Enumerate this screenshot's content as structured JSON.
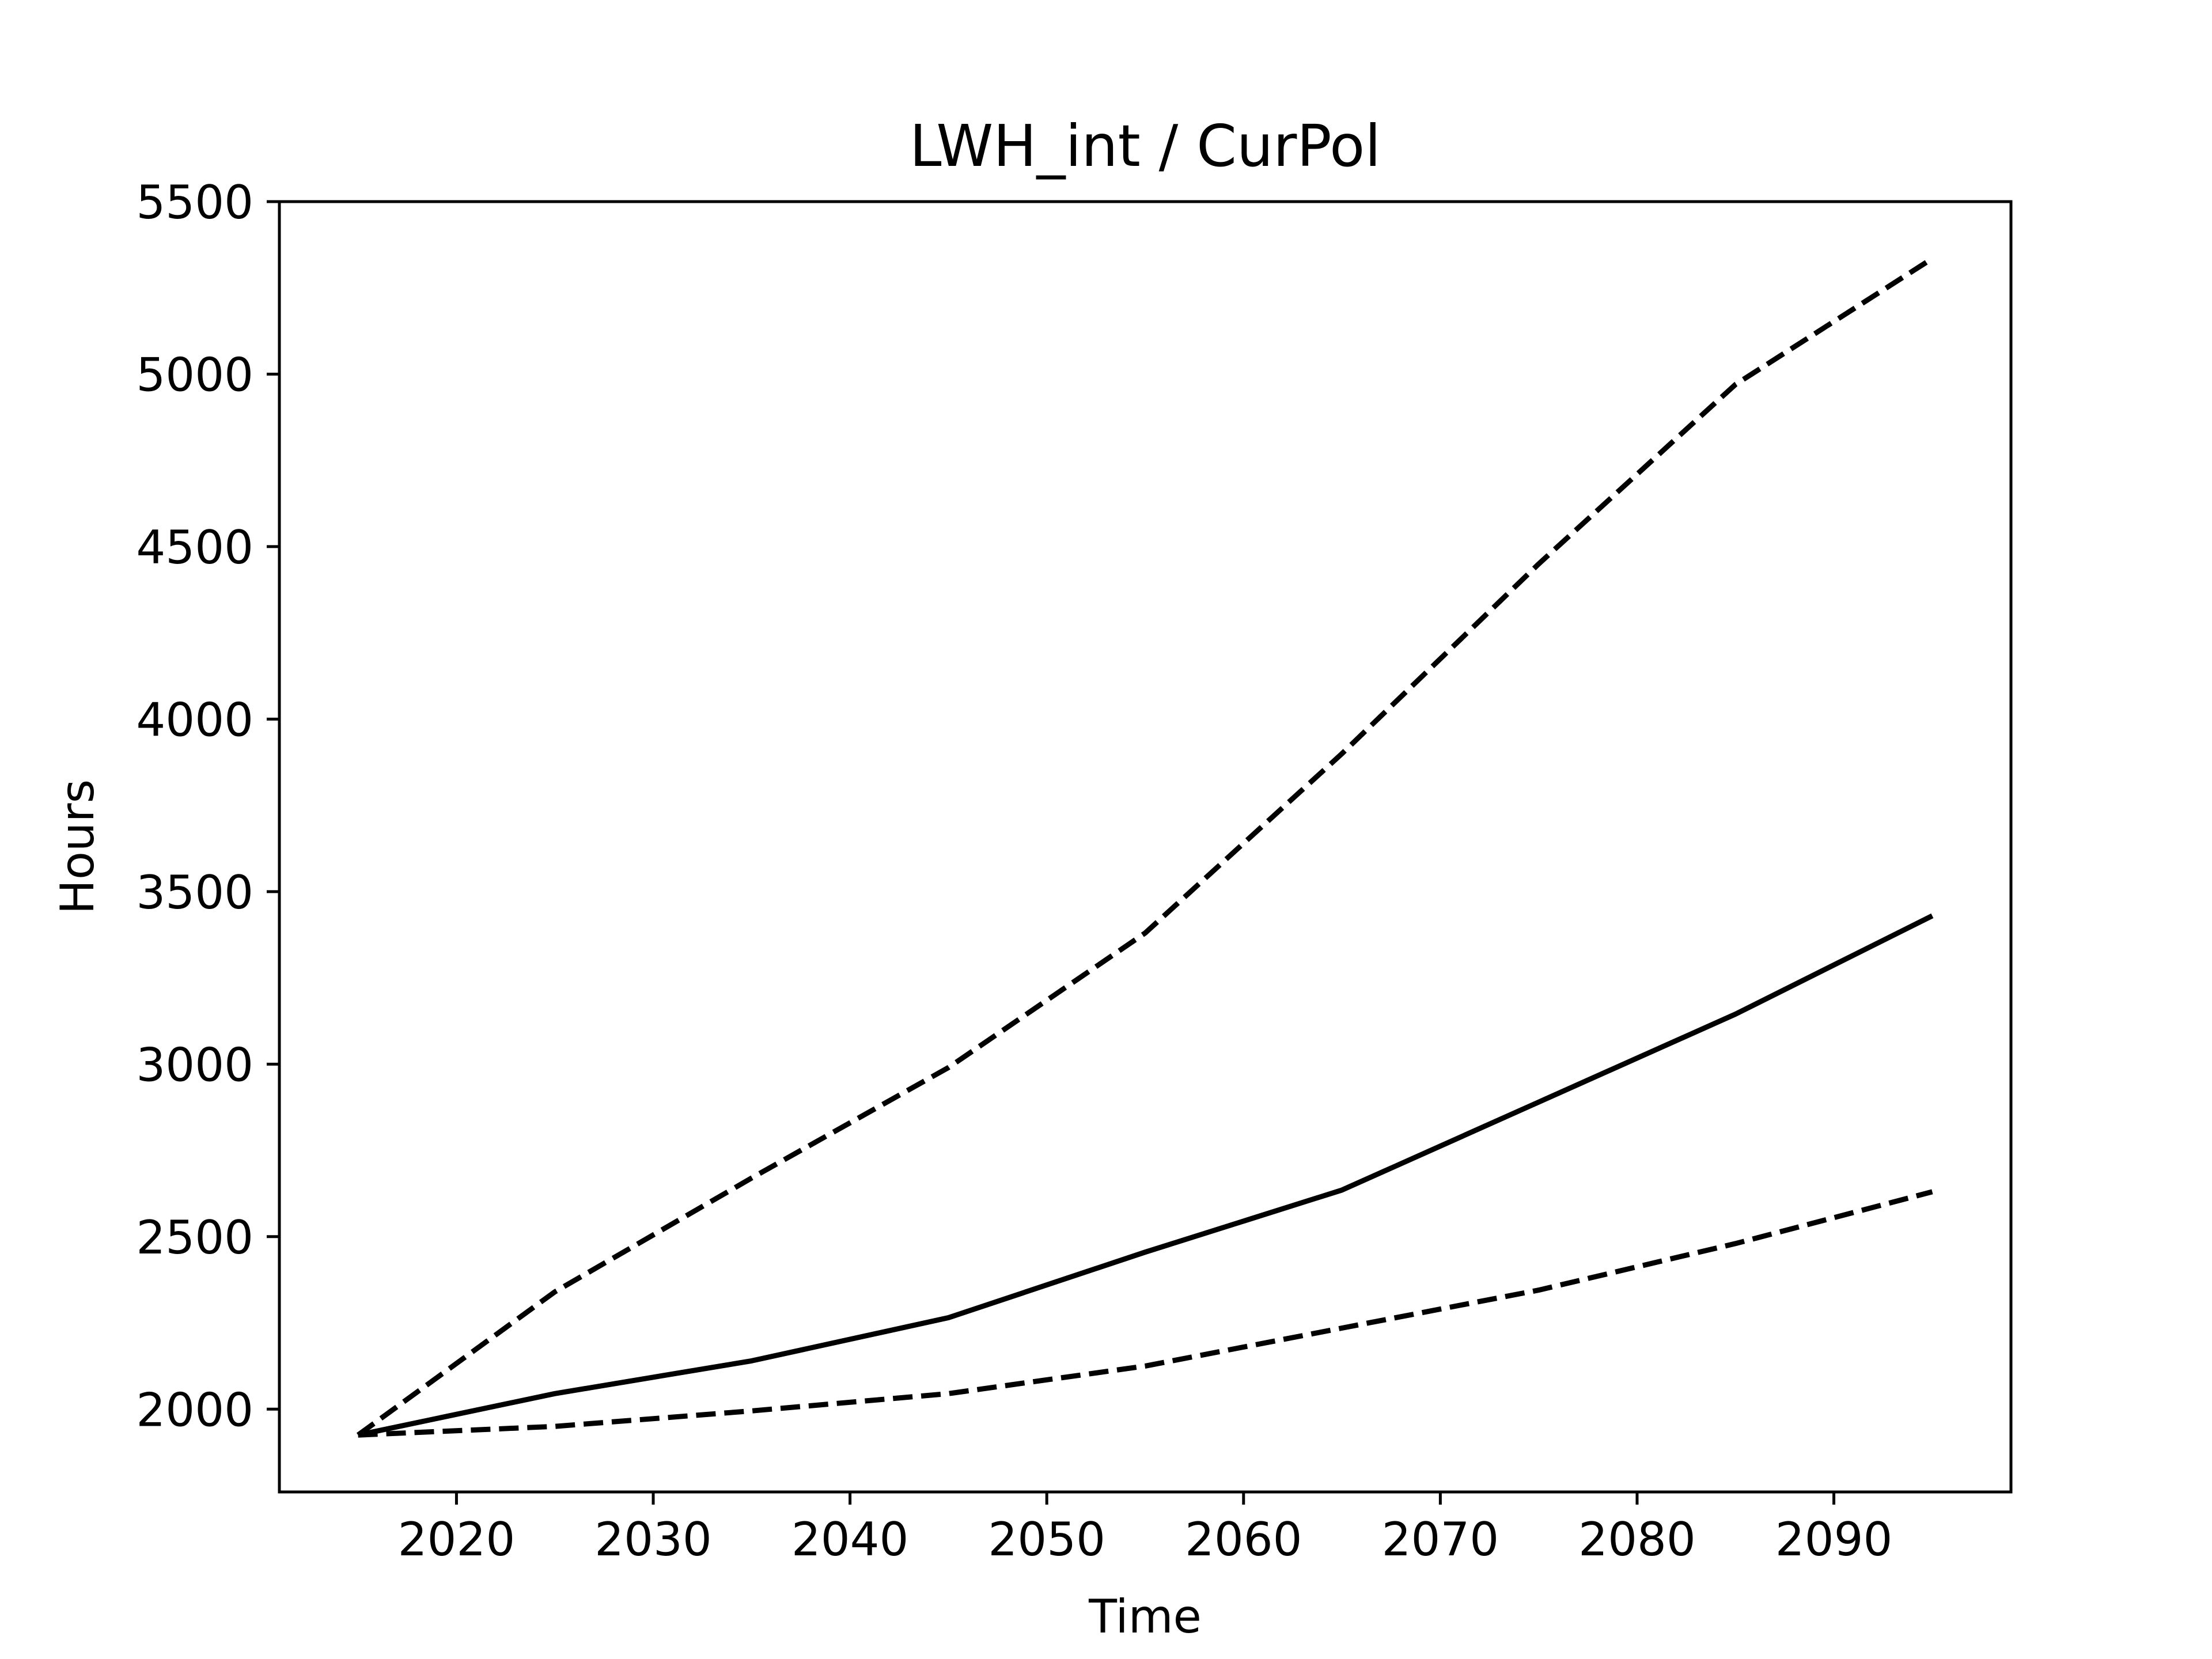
{
  "chart_data": {
    "type": "line",
    "title": "LWH_int / CurPol",
    "xlabel": "Time",
    "ylabel": "Hours",
    "xlim": [
      2011,
      2099
    ],
    "ylim": [
      1760,
      5500
    ],
    "xticks": [
      2020,
      2030,
      2040,
      2050,
      2060,
      2070,
      2080,
      2090
    ],
    "yticks": [
      2000,
      2500,
      3000,
      3500,
      4000,
      4500,
      5000,
      5500
    ],
    "grid": false,
    "x": [
      2015,
      2025,
      2035,
      2045,
      2055,
      2065,
      2075,
      2085,
      2095
    ],
    "series": [
      {
        "style": "dashed",
        "color": "#000000",
        "values": [
          1925,
          2340,
          2670,
          2990,
          3380,
          3900,
          4450,
          4970,
          5335
        ]
      },
      {
        "style": "solid",
        "color": "#000000",
        "values": [
          1925,
          2045,
          2140,
          2265,
          2455,
          2635,
          2890,
          3145,
          3430
        ]
      },
      {
        "style": "dashed",
        "color": "#000000",
        "values": [
          1925,
          1950,
          1995,
          2045,
          2125,
          2235,
          2345,
          2480,
          2630
        ]
      }
    ]
  }
}
